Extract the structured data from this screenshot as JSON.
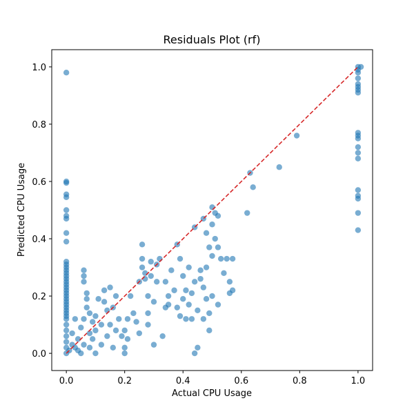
{
  "chart_data": {
    "type": "scatter",
    "title": "Residuals Plot (rf)",
    "xlabel": "Actual CPU Usage",
    "ylabel": "Predicted CPU Usage",
    "xlim": [
      -0.05,
      1.05
    ],
    "ylim": [
      -0.06,
      1.06
    ],
    "xticks": [
      "0.0",
      "0.2",
      "0.4",
      "0.6",
      "0.8",
      "1.0"
    ],
    "yticks": [
      "0.0",
      "0.2",
      "0.4",
      "0.6",
      "0.8",
      "1.0"
    ],
    "grid": false,
    "legend": "none",
    "colors": {
      "points": "#1f77b4",
      "reference_line": "#d62728"
    },
    "reference_line": {
      "from": [
        0,
        0
      ],
      "to": [
        1,
        1
      ],
      "style": "dashed"
    },
    "series": [
      {
        "points": [
          [
            0.0,
            0.98
          ],
          [
            0.0,
            0.6
          ],
          [
            0.0,
            0.595
          ],
          [
            0.0,
            0.555
          ],
          [
            0.0,
            0.545
          ],
          [
            0.0,
            0.5
          ],
          [
            0.0,
            0.48
          ],
          [
            0.0,
            0.47
          ],
          [
            0.0,
            0.42
          ],
          [
            0.0,
            0.39
          ],
          [
            0.0,
            0.32
          ],
          [
            0.0,
            0.31
          ],
          [
            0.0,
            0.3
          ],
          [
            0.0,
            0.29
          ],
          [
            0.0,
            0.28
          ],
          [
            0.0,
            0.27
          ],
          [
            0.0,
            0.26
          ],
          [
            0.0,
            0.25
          ],
          [
            0.0,
            0.24
          ],
          [
            0.0,
            0.23
          ],
          [
            0.0,
            0.22
          ],
          [
            0.0,
            0.21
          ],
          [
            0.0,
            0.2
          ],
          [
            0.0,
            0.19
          ],
          [
            0.0,
            0.18
          ],
          [
            0.0,
            0.17
          ],
          [
            0.0,
            0.16
          ],
          [
            0.0,
            0.15
          ],
          [
            0.0,
            0.14
          ],
          [
            0.0,
            0.13
          ],
          [
            0.0,
            0.12
          ],
          [
            0.0,
            0.1
          ],
          [
            0.0,
            0.08
          ],
          [
            0.0,
            0.06
          ],
          [
            0.0,
            0.04
          ],
          [
            0.0,
            0.02
          ],
          [
            0.0,
            0.0
          ],
          [
            0.01,
            0.01
          ],
          [
            0.02,
            0.03
          ],
          [
            0.02,
            0.07
          ],
          [
            0.03,
            0.02
          ],
          [
            0.03,
            0.12
          ],
          [
            0.04,
            0.05
          ],
          [
            0.04,
            0.01
          ],
          [
            0.05,
            0.0
          ],
          [
            0.05,
            0.09
          ],
          [
            0.06,
            0.03
          ],
          [
            0.06,
            0.12
          ],
          [
            0.06,
            0.29
          ],
          [
            0.06,
            0.27
          ],
          [
            0.06,
            0.25
          ],
          [
            0.07,
            0.21
          ],
          [
            0.07,
            0.19
          ],
          [
            0.07,
            0.16
          ],
          [
            0.08,
            0.14
          ],
          [
            0.08,
            0.07
          ],
          [
            0.08,
            0.02
          ],
          [
            0.09,
            0.11
          ],
          [
            0.09,
            0.05
          ],
          [
            0.1,
            0.0
          ],
          [
            0.1,
            0.13
          ],
          [
            0.1,
            0.08
          ],
          [
            0.11,
            0.19
          ],
          [
            0.12,
            0.1
          ],
          [
            0.12,
            0.03
          ],
          [
            0.13,
            0.22
          ],
          [
            0.13,
            0.18
          ],
          [
            0.14,
            0.06
          ],
          [
            0.14,
            0.15
          ],
          [
            0.15,
            0.23
          ],
          [
            0.15,
            0.1
          ],
          [
            0.16,
            0.02
          ],
          [
            0.16,
            0.16
          ],
          [
            0.17,
            0.2
          ],
          [
            0.17,
            0.08
          ],
          [
            0.18,
            0.12
          ],
          [
            0.19,
            0.06
          ],
          [
            0.2,
            0.08
          ],
          [
            0.2,
            0.02
          ],
          [
            0.2,
            0.0
          ],
          [
            0.21,
            0.12
          ],
          [
            0.21,
            0.05
          ],
          [
            0.22,
            0.2
          ],
          [
            0.23,
            0.14
          ],
          [
            0.24,
            0.11
          ],
          [
            0.25,
            0.07
          ],
          [
            0.25,
            0.25
          ],
          [
            0.26,
            0.3
          ],
          [
            0.26,
            0.33
          ],
          [
            0.26,
            0.38
          ],
          [
            0.27,
            0.28
          ],
          [
            0.27,
            0.26
          ],
          [
            0.28,
            0.2
          ],
          [
            0.28,
            0.14
          ],
          [
            0.28,
            0.1
          ],
          [
            0.29,
            0.27
          ],
          [
            0.29,
            0.32
          ],
          [
            0.3,
            0.03
          ],
          [
            0.3,
            0.18
          ],
          [
            0.31,
            0.25
          ],
          [
            0.31,
            0.31
          ],
          [
            0.32,
            0.33
          ],
          [
            0.33,
            0.06
          ],
          [
            0.34,
            0.16
          ],
          [
            0.34,
            0.25
          ],
          [
            0.35,
            0.2
          ],
          [
            0.35,
            0.17
          ],
          [
            0.36,
            0.29
          ],
          [
            0.37,
            0.22
          ],
          [
            0.38,
            0.38
          ],
          [
            0.38,
            0.16
          ],
          [
            0.39,
            0.33
          ],
          [
            0.39,
            0.13
          ],
          [
            0.4,
            0.27
          ],
          [
            0.4,
            0.19
          ],
          [
            0.41,
            0.22
          ],
          [
            0.41,
            0.12
          ],
          [
            0.42,
            0.3
          ],
          [
            0.42,
            0.17
          ],
          [
            0.43,
            0.21
          ],
          [
            0.43,
            0.12
          ],
          [
            0.44,
            0.25
          ],
          [
            0.44,
            0.44
          ],
          [
            0.44,
            0.0
          ],
          [
            0.45,
            0.02
          ],
          [
            0.45,
            0.15
          ],
          [
            0.46,
            0.29
          ],
          [
            0.46,
            0.26
          ],
          [
            0.47,
            0.47
          ],
          [
            0.47,
            0.23
          ],
          [
            0.47,
            0.12
          ],
          [
            0.48,
            0.42
          ],
          [
            0.48,
            0.3
          ],
          [
            0.48,
            0.19
          ],
          [
            0.49,
            0.37
          ],
          [
            0.49,
            0.08
          ],
          [
            0.49,
            0.14
          ],
          [
            0.5,
            0.45
          ],
          [
            0.5,
            0.34
          ],
          [
            0.5,
            0.2
          ],
          [
            0.5,
            0.51
          ],
          [
            0.51,
            0.49
          ],
          [
            0.51,
            0.4
          ],
          [
            0.52,
            0.37
          ],
          [
            0.52,
            0.48
          ],
          [
            0.52,
            0.17
          ],
          [
            0.53,
            0.33
          ],
          [
            0.54,
            0.28
          ],
          [
            0.55,
            0.33
          ],
          [
            0.56,
            0.25
          ],
          [
            0.56,
            0.21
          ],
          [
            0.57,
            0.33
          ],
          [
            0.57,
            0.22
          ],
          [
            0.62,
            0.49
          ],
          [
            0.63,
            0.63
          ],
          [
            0.64,
            0.58
          ],
          [
            0.73,
            0.65
          ],
          [
            0.79,
            0.76
          ],
          [
            1.0,
            1.0
          ],
          [
            1.0,
            0.99
          ],
          [
            1.0,
            0.98
          ],
          [
            1.0,
            0.96
          ],
          [
            1.0,
            0.94
          ],
          [
            1.0,
            0.93
          ],
          [
            1.0,
            0.92
          ],
          [
            1.0,
            0.91
          ],
          [
            1.0,
            0.77
          ],
          [
            1.0,
            0.76
          ],
          [
            1.0,
            0.75
          ],
          [
            1.0,
            0.72
          ],
          [
            1.0,
            0.7
          ],
          [
            1.0,
            0.68
          ],
          [
            1.0,
            0.57
          ],
          [
            1.0,
            0.55
          ],
          [
            1.0,
            0.54
          ],
          [
            1.0,
            0.49
          ],
          [
            1.0,
            0.43
          ],
          [
            1.01,
            1.0
          ]
        ]
      }
    ]
  }
}
